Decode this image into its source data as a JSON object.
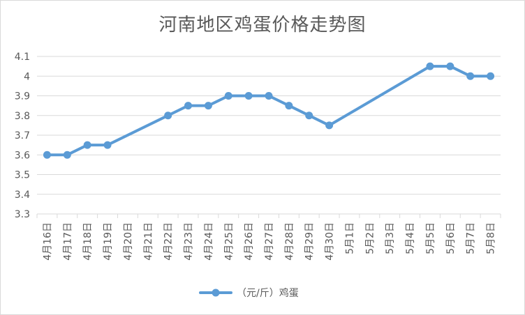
{
  "chart_data": {
    "type": "line",
    "title": "河南地区鸡蛋价格走势图",
    "xlabel": "",
    "ylabel": "",
    "ylim": [
      3.3,
      4.1
    ],
    "yticks": [
      "3.3",
      "3.4",
      "3.5",
      "3.6",
      "3.7",
      "3.8",
      "3.9",
      "4",
      "4.1"
    ],
    "grid": true,
    "legend_position": "bottom",
    "categories": [
      "4月16日",
      "4月17日",
      "4月18日",
      "4月19日",
      "4月20日",
      "4月21日",
      "4月22日",
      "4月23日",
      "4月24日",
      "4月25日",
      "4月26日",
      "4月27日",
      "4月28日",
      "4月29日",
      "4月30日",
      "5月1日",
      "5月2日",
      "5月3日",
      "5月4日",
      "5月5日",
      "5月6日",
      "5月7日",
      "5月8日"
    ],
    "series": [
      {
        "name": "（元/斤）鸡蛋",
        "color": "#5b9bd5",
        "values": [
          3.6,
          3.6,
          3.65,
          3.65,
          null,
          null,
          3.8,
          3.85,
          3.85,
          3.9,
          3.9,
          3.9,
          3.85,
          3.8,
          3.75,
          null,
          null,
          null,
          null,
          4.05,
          4.05,
          4.0,
          4.0
        ]
      }
    ]
  }
}
